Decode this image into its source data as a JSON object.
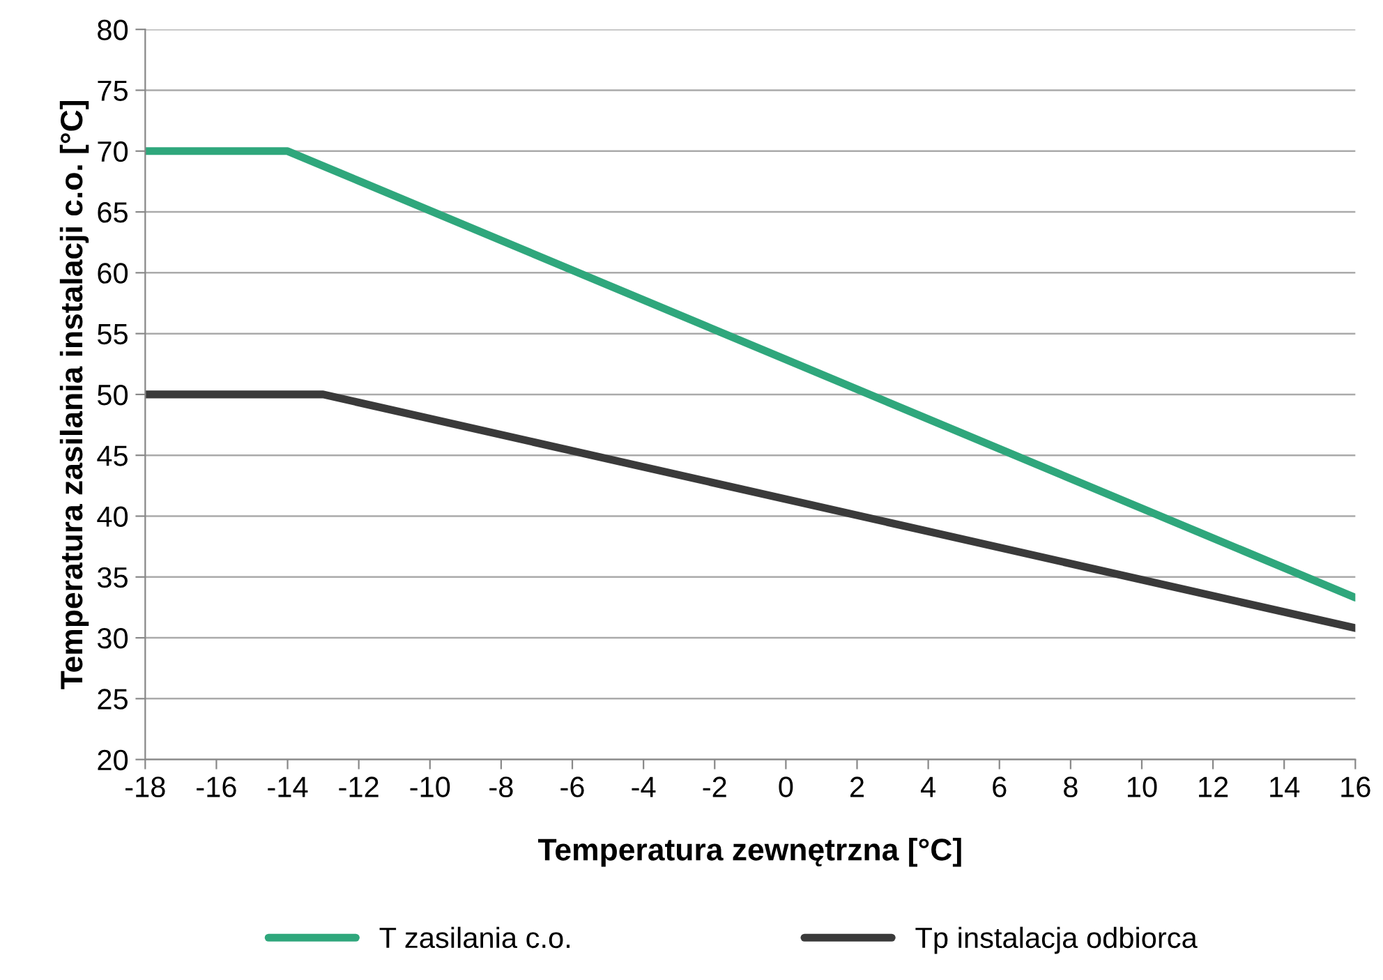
{
  "chart_data": {
    "type": "line",
    "xlabel": "Temperatura zewnętrzna [°C]",
    "ylabel": "Temperatura zasilania instalacji c.o. [°C]",
    "series": [
      {
        "name": "T zasilania c.o.",
        "color": "#2fa77c",
        "x": [
          -18,
          -14,
          16
        ],
        "values": [
          70,
          70,
          33.3
        ]
      },
      {
        "name": "Tp instalacja odbiorca",
        "color": "#3a3a3a",
        "x": [
          -18,
          -13,
          16
        ],
        "values": [
          50,
          50,
          30.8
        ]
      }
    ],
    "xlim": [
      -18,
      16
    ],
    "xticks": [
      -18,
      -16,
      -14,
      -12,
      -10,
      -8,
      -6,
      -4,
      -2,
      0,
      2,
      4,
      6,
      8,
      10,
      12,
      14,
      16
    ],
    "ylim": [
      20,
      80
    ],
    "yticks": [
      20,
      25,
      30,
      35,
      40,
      45,
      50,
      55,
      60,
      65,
      70,
      75,
      80
    ],
    "grid": "y",
    "legend": "bottom",
    "marker": "none",
    "line_style": "solid"
  }
}
